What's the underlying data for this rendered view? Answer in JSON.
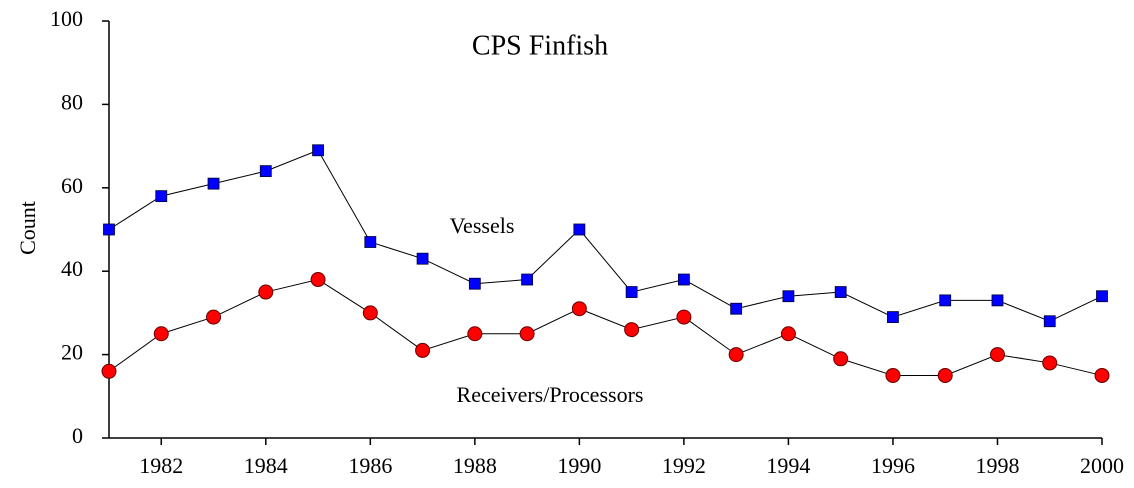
{
  "chart_data": {
    "type": "line",
    "title": "CPS Finfish",
    "ylabel": "Count",
    "x": [
      1981,
      1982,
      1983,
      1984,
      1985,
      1986,
      1987,
      1988,
      1989,
      1990,
      1991,
      1992,
      1993,
      1994,
      1995,
      1996,
      1997,
      1998,
      1999,
      2000
    ],
    "series": [
      {
        "name": "Vessels",
        "color": "#0000ff",
        "marker": "square",
        "values": [
          50,
          58,
          61,
          64,
          69,
          47,
          43,
          37,
          38,
          50,
          35,
          38,
          31,
          34,
          35,
          29,
          33,
          33,
          28,
          34
        ]
      },
      {
        "name": "Receivers/Processors",
        "color": "#ff0000",
        "marker": "circle",
        "values": [
          16,
          25,
          29,
          35,
          38,
          30,
          21,
          25,
          25,
          31,
          26,
          29,
          20,
          25,
          19,
          15,
          15,
          20,
          18,
          15
        ]
      }
    ],
    "xlim": [
      1981,
      2000
    ],
    "xticks": [
      1982,
      1984,
      1986,
      1988,
      1990,
      1992,
      1994,
      1996,
      1998,
      2000
    ],
    "ylim": [
      0,
      100
    ],
    "yticks": [
      0,
      20,
      40,
      60,
      80,
      100
    ],
    "grid": false
  }
}
